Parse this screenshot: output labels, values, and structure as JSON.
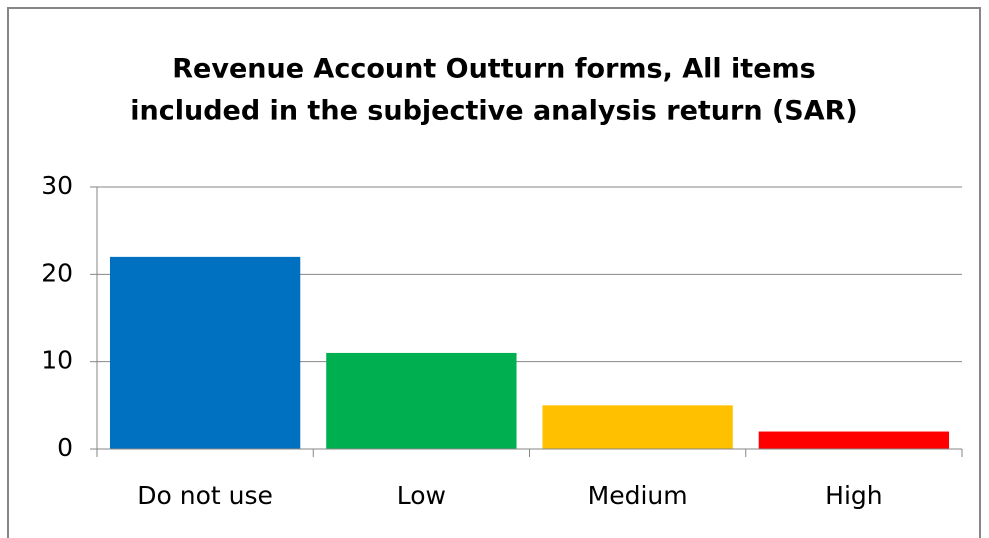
{
  "chart_data": {
    "type": "bar",
    "title": [
      "Revenue Account Outturn forms, All items",
      "included in the subjective analysis return (SAR)"
    ],
    "categories": [
      "Do not use",
      "Low",
      "Medium",
      "High"
    ],
    "values": [
      22,
      11,
      5,
      2
    ],
    "colors": [
      "#0070c0",
      "#00b050",
      "#ffc000",
      "#ff0000"
    ],
    "ylim": [
      0,
      30
    ],
    "yticks": [
      0,
      10,
      20,
      30
    ],
    "grid": true
  }
}
